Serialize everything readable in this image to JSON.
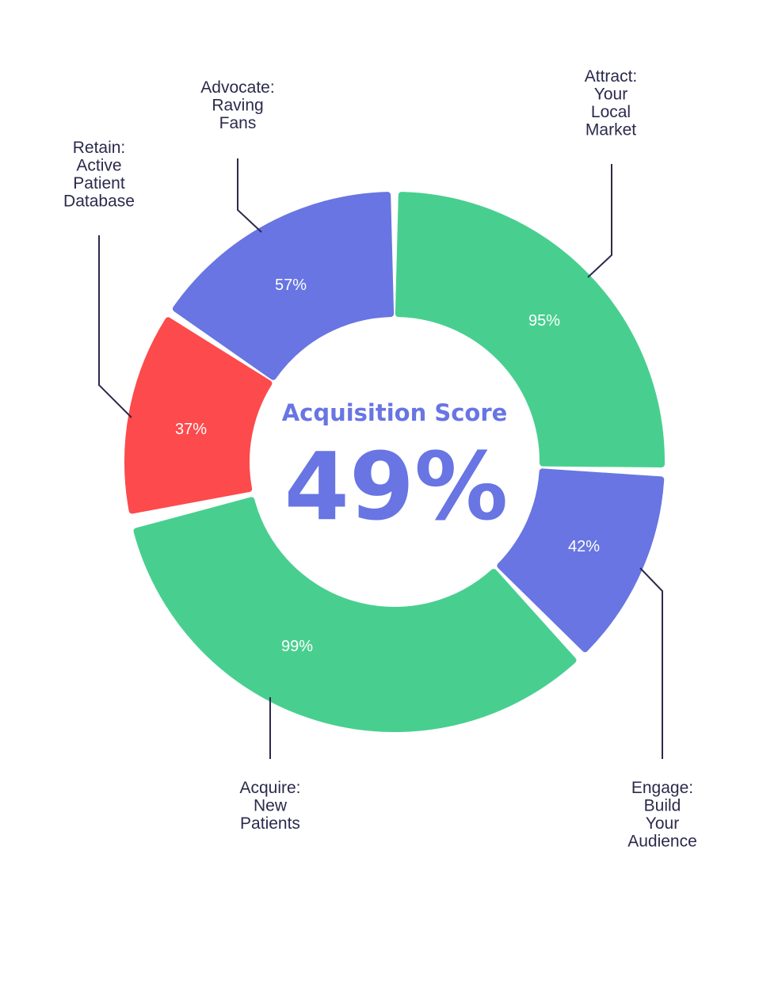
{
  "center": {
    "title": "Acquisition Score",
    "value": "49%"
  },
  "colors": {
    "green": "#48cf8f",
    "blue": "#6875e2",
    "red": "#fd4a4c",
    "text": "#2b2a4c",
    "center": "#6875e2"
  },
  "chart_data": {
    "type": "pie",
    "variant": "donut",
    "series": [
      {
        "label_lines": [
          "Attract:",
          "Your",
          "Local",
          "Market"
        ],
        "value": 95,
        "value_label": "95%",
        "color": "#48cf8f"
      },
      {
        "label_lines": [
          "Engage:",
          "Build",
          "Your",
          "Audience"
        ],
        "value": 42,
        "value_label": "42%",
        "color": "#6875e2"
      },
      {
        "label_lines": [
          "Acquire:",
          "New",
          "Patients"
        ],
        "value": 99,
        "value_label": "99%",
        "color": "#48cf8f"
      },
      {
        "label_lines": [
          "Retain:",
          "Active",
          "Patient",
          "Database"
        ],
        "value": 37,
        "value_label": "37%",
        "color": "#fd4a4c"
      },
      {
        "label_lines": [
          "Advocate:",
          "Raving",
          "Fans"
        ],
        "value": 57,
        "value_label": "57%",
        "color": "#6875e2"
      }
    ]
  }
}
